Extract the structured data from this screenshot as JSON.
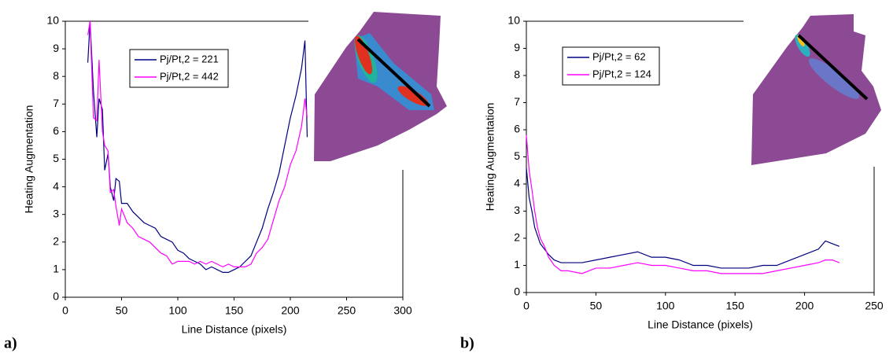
{
  "chart_data": [
    {
      "type": "line",
      "panel_label": "a)",
      "xlabel": "Line Distance (pixels)",
      "ylabel": "Heating Augmentation",
      "xlim": [
        0,
        300
      ],
      "ylim": [
        0,
        10
      ],
      "xticks": [
        0,
        50,
        100,
        150,
        200,
        250,
        300
      ],
      "yticks": [
        0,
        1,
        2,
        3,
        4,
        5,
        6,
        7,
        8,
        9,
        10
      ],
      "legend": "upper-left",
      "x": [
        20,
        22,
        25,
        28,
        30,
        33,
        35,
        38,
        40,
        43,
        45,
        48,
        50,
        55,
        60,
        65,
        70,
        75,
        80,
        85,
        90,
        95,
        100,
        105,
        110,
        115,
        120,
        125,
        130,
        135,
        140,
        145,
        150,
        155,
        160,
        165,
        170,
        175,
        180,
        185,
        190,
        195,
        200,
        205,
        210,
        213,
        215
      ],
      "series": [
        {
          "name": "Pj/Pt,2 = 221",
          "color": "#000080",
          "values": [
            8.5,
            10,
            7.5,
            5.8,
            7.2,
            6.8,
            4.6,
            5.2,
            4.0,
            3.5,
            4.3,
            4.2,
            3.4,
            3.4,
            3.1,
            2.9,
            2.7,
            2.6,
            2.5,
            2.2,
            2.1,
            2.0,
            1.7,
            1.6,
            1.4,
            1.3,
            1.2,
            1.0,
            1.1,
            1.0,
            0.9,
            0.9,
            1.0,
            1.1,
            1.3,
            1.5,
            2.0,
            2.5,
            3.2,
            3.8,
            4.5,
            5.5,
            6.5,
            7.3,
            8.3,
            9.3,
            5.8
          ]
        },
        {
          "name": "Pj/Pt,2 = 442",
          "color": "#ff00ff",
          "values": [
            9.5,
            10,
            6.5,
            6.4,
            8.6,
            6.0,
            5.5,
            5.3,
            3.8,
            3.9,
            3.3,
            2.6,
            3.2,
            2.7,
            2.5,
            2.2,
            2.1,
            2.0,
            1.8,
            1.6,
            1.5,
            1.2,
            1.3,
            1.3,
            1.3,
            1.2,
            1.3,
            1.2,
            1.3,
            1.2,
            1.1,
            1.2,
            1.1,
            1.1,
            1.1,
            1.2,
            1.6,
            1.8,
            2.1,
            2.8,
            3.5,
            4.0,
            4.8,
            5.3,
            6.2,
            7.2,
            6.5
          ]
        }
      ]
    },
    {
      "type": "line",
      "panel_label": "b)",
      "xlabel": "Line Distance (pixels)",
      "ylabel": "Heating Augmentation",
      "xlim": [
        0,
        250
      ],
      "ylim": [
        0,
        10
      ],
      "xticks": [
        0,
        50,
        100,
        150,
        200,
        250
      ],
      "yticks": [
        0,
        1,
        2,
        3,
        4,
        5,
        6,
        7,
        8,
        9,
        10
      ],
      "legend": "upper-left",
      "x": [
        0,
        2,
        4,
        6,
        8,
        10,
        13,
        16,
        20,
        25,
        30,
        40,
        50,
        60,
        70,
        80,
        90,
        100,
        110,
        120,
        130,
        140,
        150,
        160,
        170,
        180,
        190,
        200,
        210,
        215,
        220,
        225
      ],
      "series": [
        {
          "name": "Pj/Pt,2 = 62",
          "color": "#000080",
          "values": [
            4.6,
            3.5,
            3.0,
            2.4,
            2.1,
            1.8,
            1.6,
            1.4,
            1.2,
            1.1,
            1.1,
            1.1,
            1.2,
            1.3,
            1.4,
            1.5,
            1.3,
            1.3,
            1.2,
            1.0,
            1.0,
            0.9,
            0.9,
            0.9,
            1.0,
            1.0,
            1.2,
            1.4,
            1.6,
            1.9,
            1.8,
            1.7
          ]
        },
        {
          "name": "Pj/Pt,2 = 124",
          "color": "#ff00ff",
          "values": [
            5.8,
            4.5,
            3.8,
            3.0,
            2.4,
            2.0,
            1.7,
            1.3,
            1.0,
            0.8,
            0.8,
            0.7,
            0.9,
            0.9,
            1.0,
            1.1,
            1.0,
            1.0,
            0.9,
            0.8,
            0.8,
            0.7,
            0.7,
            0.7,
            0.7,
            0.8,
            0.9,
            1.0,
            1.1,
            1.2,
            1.2,
            1.1
          ]
        }
      ]
    }
  ]
}
